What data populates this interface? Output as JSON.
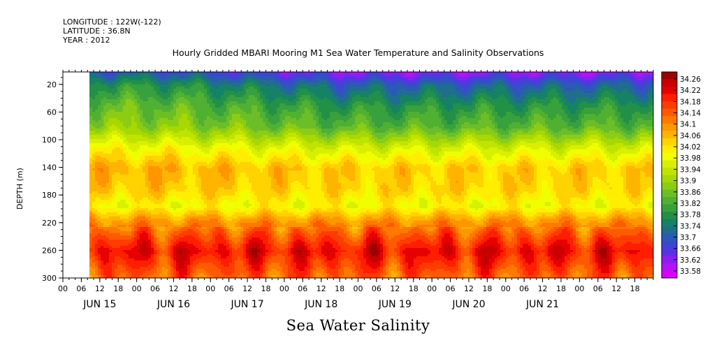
{
  "header": {
    "longitude": "LONGITUDE : 122W(-122)",
    "latitude": "LATITUDE : 36.8N",
    "year": "YEAR : 2012"
  },
  "chart_data": {
    "type": "heatmap",
    "title": "Hourly Gridded MBARI Mooring M1 Sea Water Temperature and Salinity Observations",
    "bottom_title": "Sea Water Salinity",
    "ylabel": "DEPTH (m)",
    "y_ticks": [
      "20",
      "60",
      "100",
      "140",
      "180",
      "220",
      "260",
      "300"
    ],
    "y_tick_values": [
      20,
      60,
      100,
      140,
      180,
      220,
      260,
      300
    ],
    "ylim": [
      300,
      2
    ],
    "x_hour_labels": [
      "00",
      "06",
      "12",
      "18",
      "00",
      "06",
      "12",
      "18",
      "00",
      "06",
      "12",
      "18",
      "00",
      "06",
      "12",
      "18",
      "00",
      "06",
      "12",
      "18",
      "00",
      "06",
      "12",
      "18",
      "00",
      "06",
      "12",
      "18",
      "00",
      "06",
      "12",
      "18"
    ],
    "x_day_labels": [
      "JUN 15",
      "JUN 16",
      "JUN 17",
      "JUN 18",
      "JUN 19",
      "JUN 20",
      "JUN 21"
    ],
    "x_range_hours": [
      0,
      192
    ],
    "data_start_hour": 6,
    "colorbar_labels": [
      "34.26",
      "34.22",
      "34.18",
      "34.14",
      "34.1",
      "34.06",
      "34.02",
      "33.98",
      "33.94",
      "33.9",
      "33.86",
      "33.82",
      "33.78",
      "33.74",
      "33.7",
      "33.66",
      "33.62",
      "33.58"
    ],
    "colorbar_colors": [
      "#a00000",
      "#c80000",
      "#e60000",
      "#ff1e00",
      "#ff3c00",
      "#ff5a00",
      "#ff7800",
      "#ff9600",
      "#ffb400",
      "#ffd200",
      "#ffee00",
      "#f0ff00",
      "#d8f000",
      "#c0e400",
      "#a8d800",
      "#8ccc14",
      "#6cbe28",
      "#50b032",
      "#38a03c",
      "#229046",
      "#168264",
      "#1e6e8c",
      "#2a5ab4",
      "#3c46d2",
      "#5a32e6",
      "#8c1ef0",
      "#b414f5",
      "#d800fa"
    ],
    "value_min": 33.58,
    "value_max": 34.28,
    "profile": [
      {
        "depth": 2,
        "value": 33.72
      },
      {
        "depth": 20,
        "value": 33.8
      },
      {
        "depth": 50,
        "value": 33.86
      },
      {
        "depth": 80,
        "value": 33.9
      },
      {
        "depth": 110,
        "value": 34.0
      },
      {
        "depth": 140,
        "value": 34.07
      },
      {
        "depth": 170,
        "value": 34.05
      },
      {
        "depth": 195,
        "value": 34.0
      },
      {
        "depth": 215,
        "value": 34.09
      },
      {
        "depth": 240,
        "value": 34.16
      },
      {
        "depth": 260,
        "value": 34.21
      },
      {
        "depth": 280,
        "value": 34.17
      },
      {
        "depth": 300,
        "value": 34.13
      }
    ]
  }
}
